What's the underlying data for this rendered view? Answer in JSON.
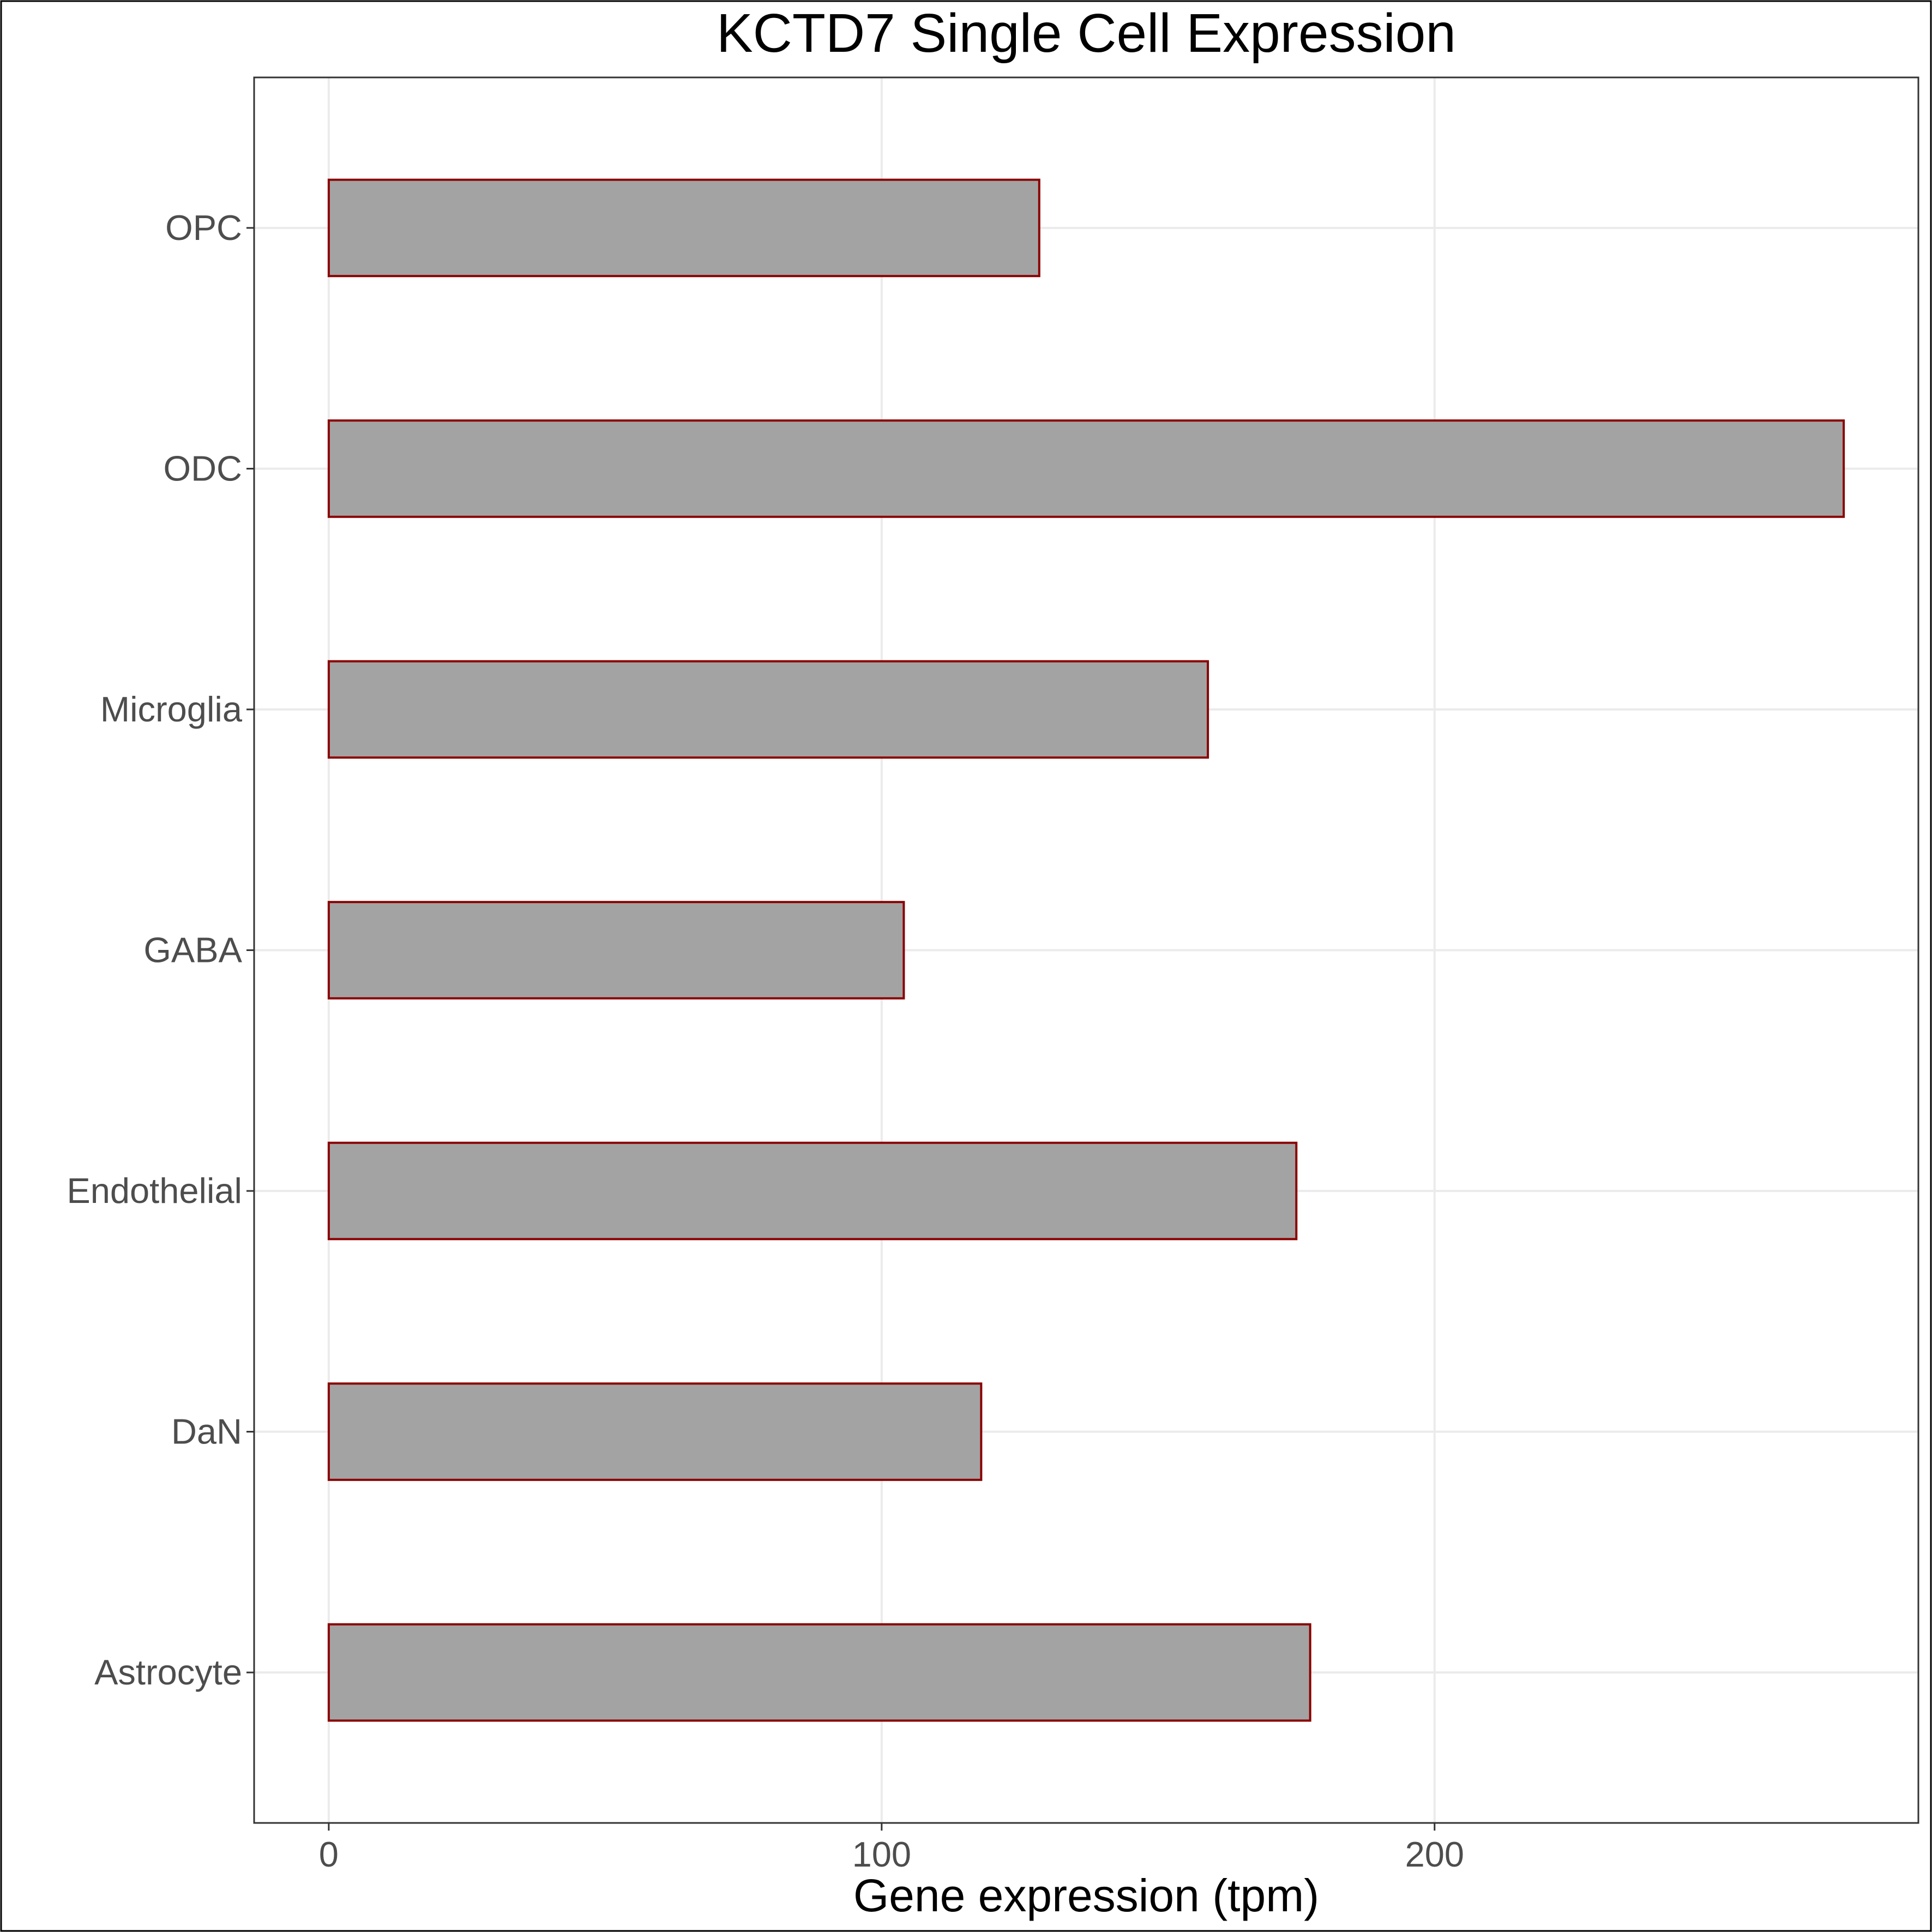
{
  "chart_data": {
    "type": "bar",
    "orientation": "horizontal",
    "title": "KCTD7 Single Cell Expression",
    "xlabel": "Gene expression (tpm)",
    "ylabel": "",
    "categories": [
      "Astrocyte",
      "DaN",
      "Endothelial",
      "GABA",
      "Microglia",
      "ODC",
      "OPC"
    ],
    "values": [
      177.5,
      118,
      175,
      104,
      159,
      274,
      128.5
    ],
    "xlim": [
      -13.5,
      287.5
    ],
    "xticks": [
      0,
      100,
      200
    ],
    "grid": true,
    "legend": "none",
    "colors": {
      "bar_fill": "#a3a3a3",
      "bar_stroke": "#8b0000",
      "grid": "#ebebeb",
      "panel_border": "#333333",
      "outer_border": "#000000",
      "tick_label": "#4d4d4d",
      "title": "#000000"
    }
  }
}
